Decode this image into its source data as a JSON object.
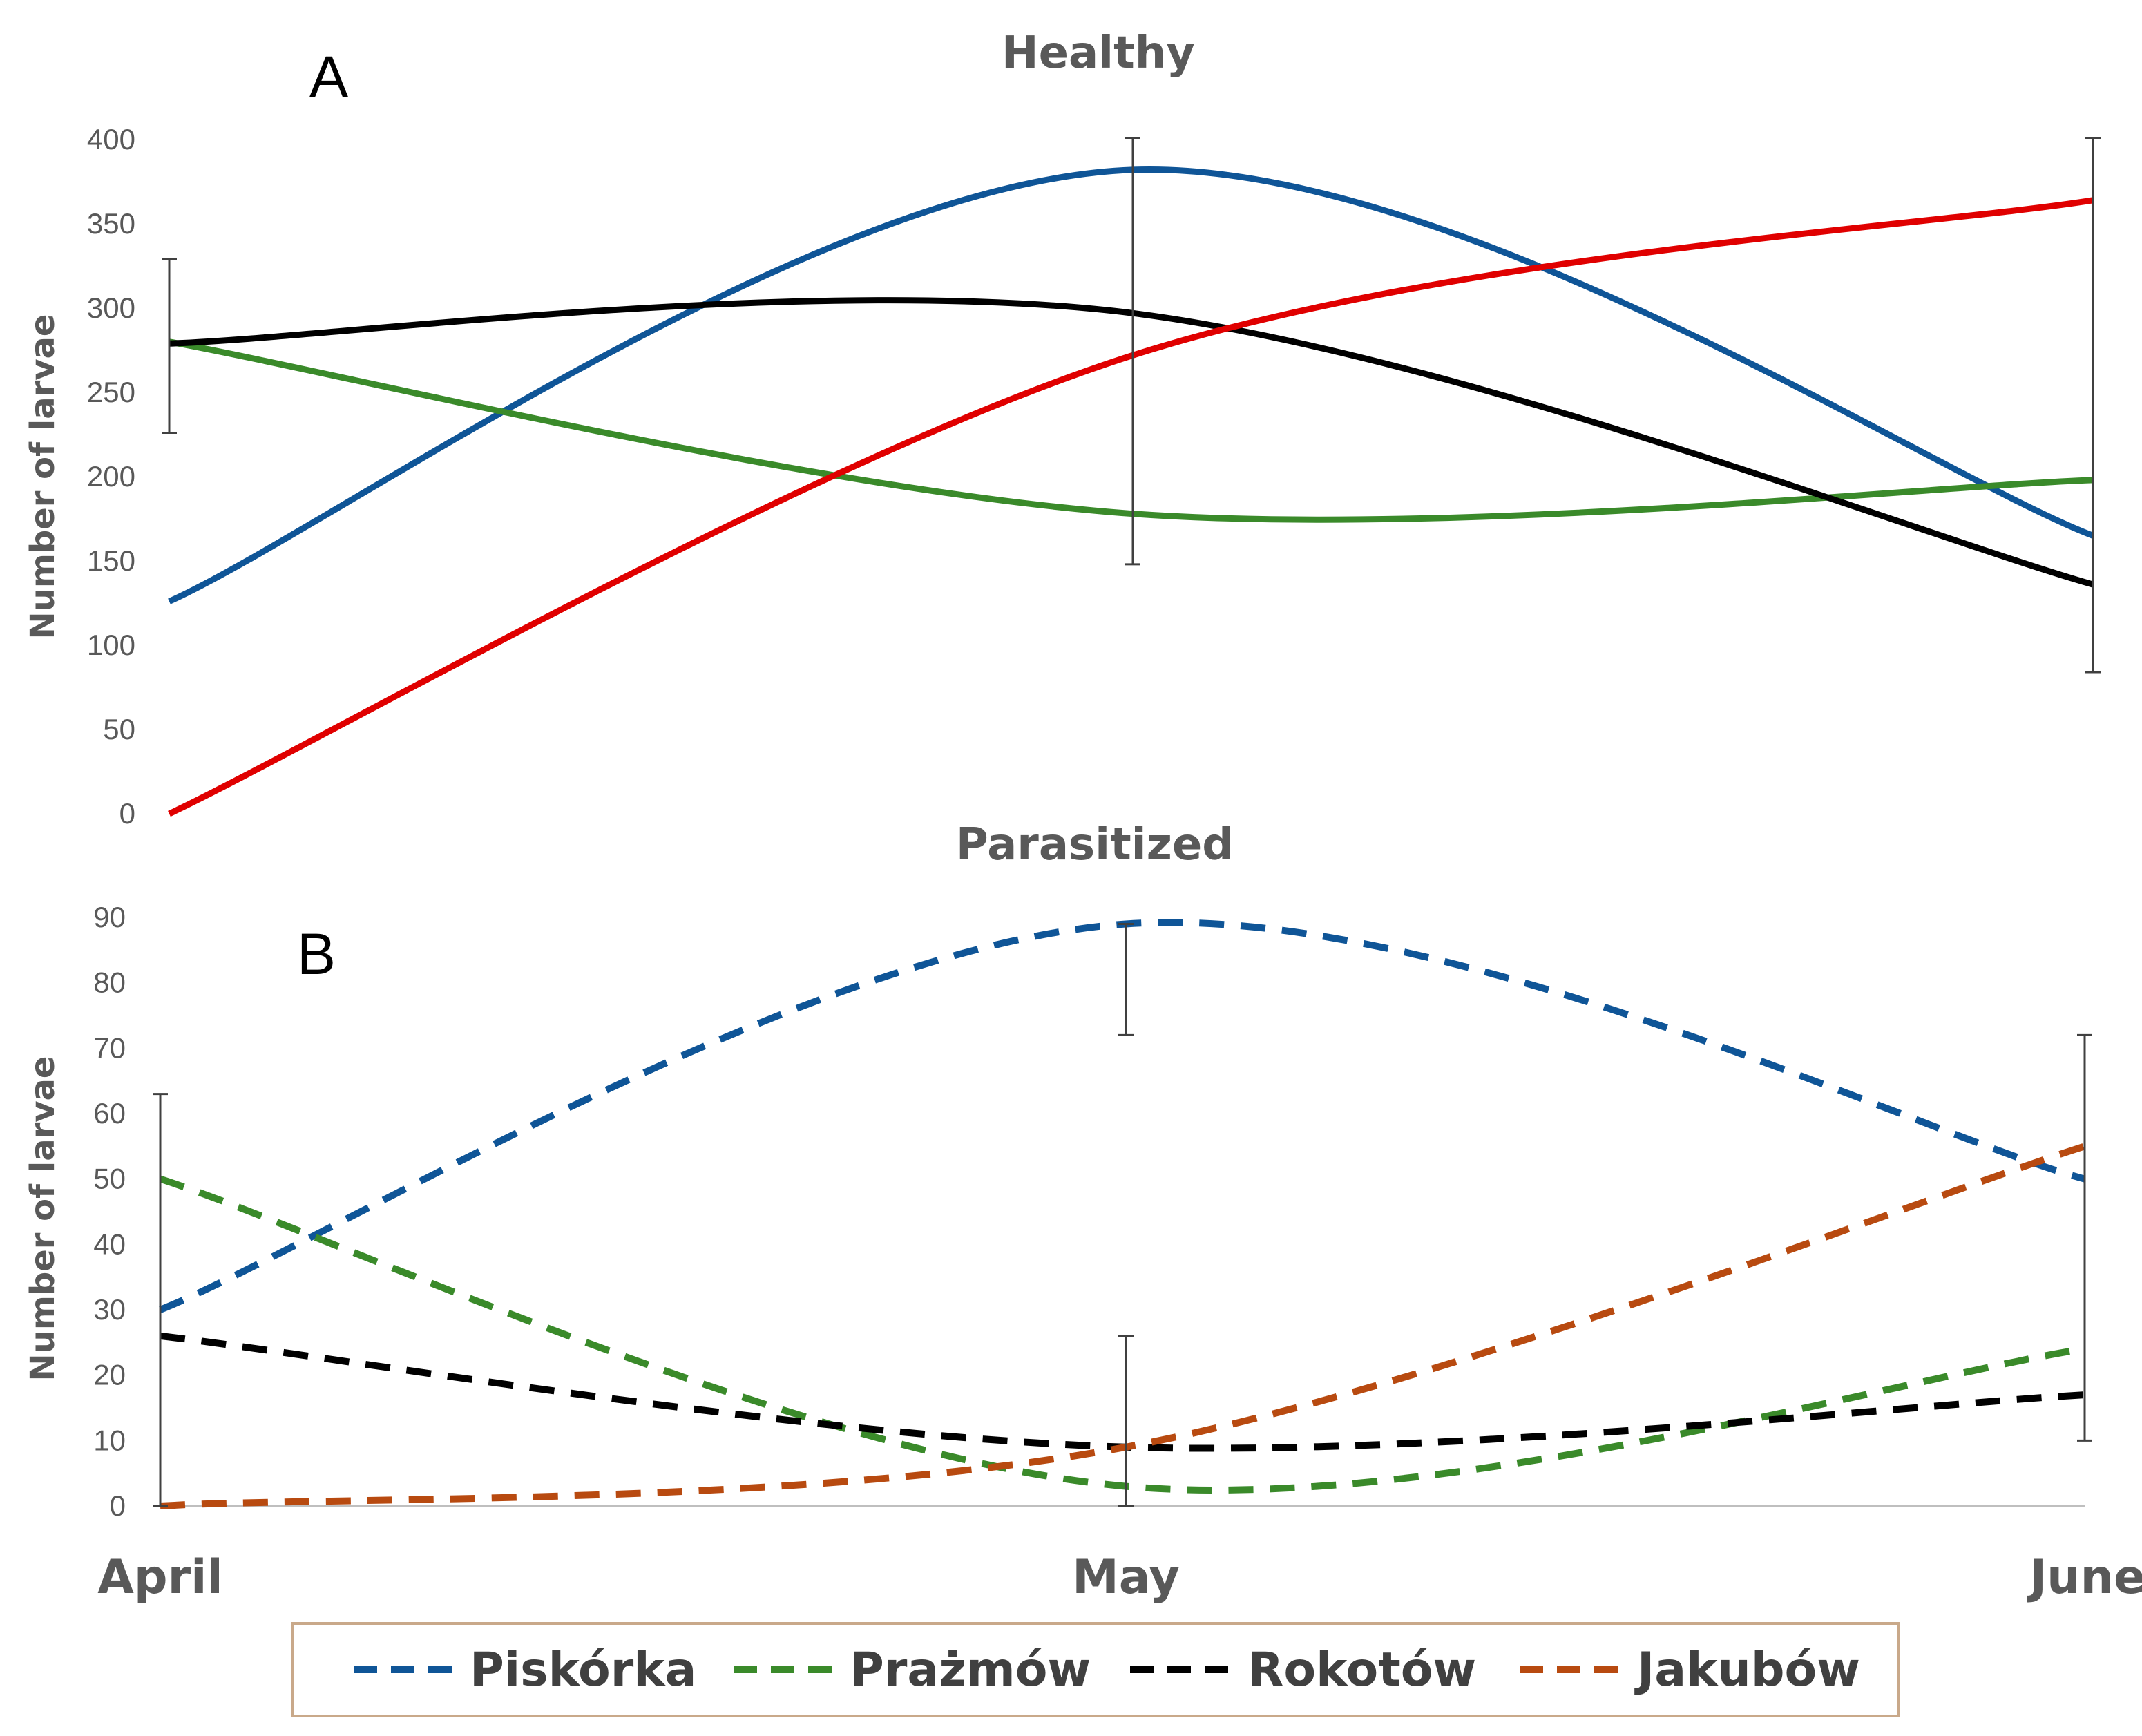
{
  "chart_data": [
    {
      "panel": "A",
      "type": "line",
      "title": "Healthy",
      "ylabel": "Number of larvae",
      "xlabel": "",
      "categories": [
        "April",
        "May",
        "June"
      ],
      "ylim": [
        0,
        400
      ],
      "yticks": [
        "0",
        "50",
        "100",
        "150",
        "200",
        "250",
        "300",
        "350",
        "400"
      ],
      "line_style": "solid",
      "series": [
        {
          "name": "Piskórka",
          "color": "#0f5597",
          "values": [
            126,
            382,
            165
          ]
        },
        {
          "name": "Prażmów",
          "color": "#3a8a2a",
          "values": [
            280,
            178,
            198
          ]
        },
        {
          "name": "Rokotów",
          "color": "#000000",
          "values": [
            279,
            297,
            136
          ]
        },
        {
          "name": "Jakubów",
          "color": "#e00000",
          "values": [
            0,
            272,
            364
          ]
        }
      ],
      "error_bars": [
        {
          "category": "April",
          "low": 226,
          "high": 329
        },
        {
          "category": "May",
          "low": 148,
          "high": 401
        },
        {
          "category": "June",
          "low": 84,
          "high": 401
        }
      ]
    },
    {
      "panel": "B",
      "type": "line",
      "title": "Parasitized",
      "ylabel": "Number of larvae",
      "xlabel": "",
      "categories": [
        "April",
        "May",
        "June"
      ],
      "ylim": [
        0,
        90
      ],
      "yticks": [
        "0",
        "10",
        "20",
        "30",
        "40",
        "50",
        "60",
        "70",
        "80",
        "90"
      ],
      "line_style": "dashed",
      "series": [
        {
          "name": "Piskórka",
          "color": "#0f5597",
          "values": [
            30,
            89,
            50
          ]
        },
        {
          "name": "Prażmów",
          "color": "#3a8a2a",
          "values": [
            50,
            3,
            24
          ]
        },
        {
          "name": "Rokotów",
          "color": "#000000",
          "values": [
            26,
            9,
            17
          ]
        },
        {
          "name": "Jakubów",
          "color": "#b84a10",
          "values": [
            0,
            9,
            55
          ]
        }
      ],
      "error_bars": [
        {
          "category": "April",
          "low": 0,
          "high": 63
        },
        {
          "category": "May",
          "low": 0,
          "high": 26
        },
        {
          "category": "May",
          "low": 72,
          "high": 89
        },
        {
          "category": "June",
          "low": 10,
          "high": 72
        }
      ]
    }
  ],
  "legend": {
    "position": "bottom",
    "line_style": "dashed",
    "entries": [
      {
        "label": "Piskórka",
        "color": "#0f5597"
      },
      {
        "label": "Prażmów",
        "color": "#3a8a2a"
      },
      {
        "label": "Rokotów",
        "color": "#000000"
      },
      {
        "label": "Jakubów",
        "color": "#b84a10"
      }
    ],
    "border_color": "#c9a98a"
  },
  "colors": {
    "axis": "#595959",
    "text": "#595959"
  }
}
